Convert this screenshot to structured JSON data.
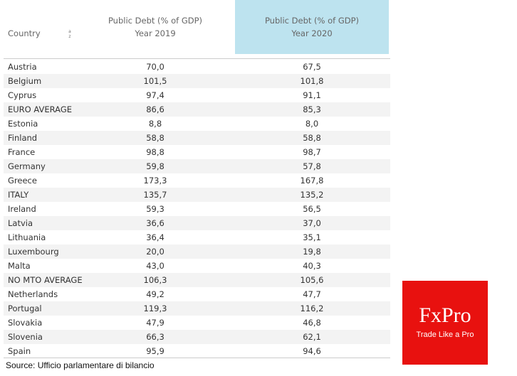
{
  "table": {
    "columns": [
      {
        "label": "Country"
      },
      {
        "label": "Public Debt (% of GDP)",
        "sub": "Year 2019"
      },
      {
        "label": "Public Debt (% of GDP)",
        "sub": "Year 2020"
      }
    ],
    "rows": [
      [
        "Austria",
        "70,0",
        "67,5"
      ],
      [
        "Belgium",
        "101,5",
        "101,8"
      ],
      [
        "Cyprus",
        "97,4",
        "91,1"
      ],
      [
        "EURO AVERAGE",
        "86,6",
        "85,3"
      ],
      [
        "Estonia",
        "8,8",
        "8,0"
      ],
      [
        "Finland",
        "58,8",
        "58,8"
      ],
      [
        "France",
        "98,8",
        "98,7"
      ],
      [
        "Germany",
        "59,8",
        "57,8"
      ],
      [
        "Greece",
        "173,3",
        "167,8"
      ],
      [
        "ITALY",
        "135,7",
        "135,2"
      ],
      [
        "Ireland",
        "59,3",
        "56,5"
      ],
      [
        "Latvia",
        "36,6",
        "37,0"
      ],
      [
        "Lithuania",
        "36,4",
        "35,1"
      ],
      [
        "Luxembourg",
        "20,0",
        "19,8"
      ],
      [
        "Malta",
        "43,0",
        "40,3"
      ],
      [
        "NO MTO AVERAGE",
        "106,3",
        "105,6"
      ],
      [
        "Netherlands",
        "49,2",
        "47,7"
      ],
      [
        "Portugal",
        "119,3",
        "116,2"
      ],
      [
        "Slovakia",
        "47,9",
        "46,8"
      ],
      [
        "Slovenia",
        "66,3",
        "62,1"
      ],
      [
        "Spain",
        "95,9",
        "94,6"
      ]
    ]
  },
  "source": "Source: Ufficio parlamentare di bilancio",
  "logo": {
    "brand": "FxPro",
    "tagline": "Trade Like a Pro"
  }
}
